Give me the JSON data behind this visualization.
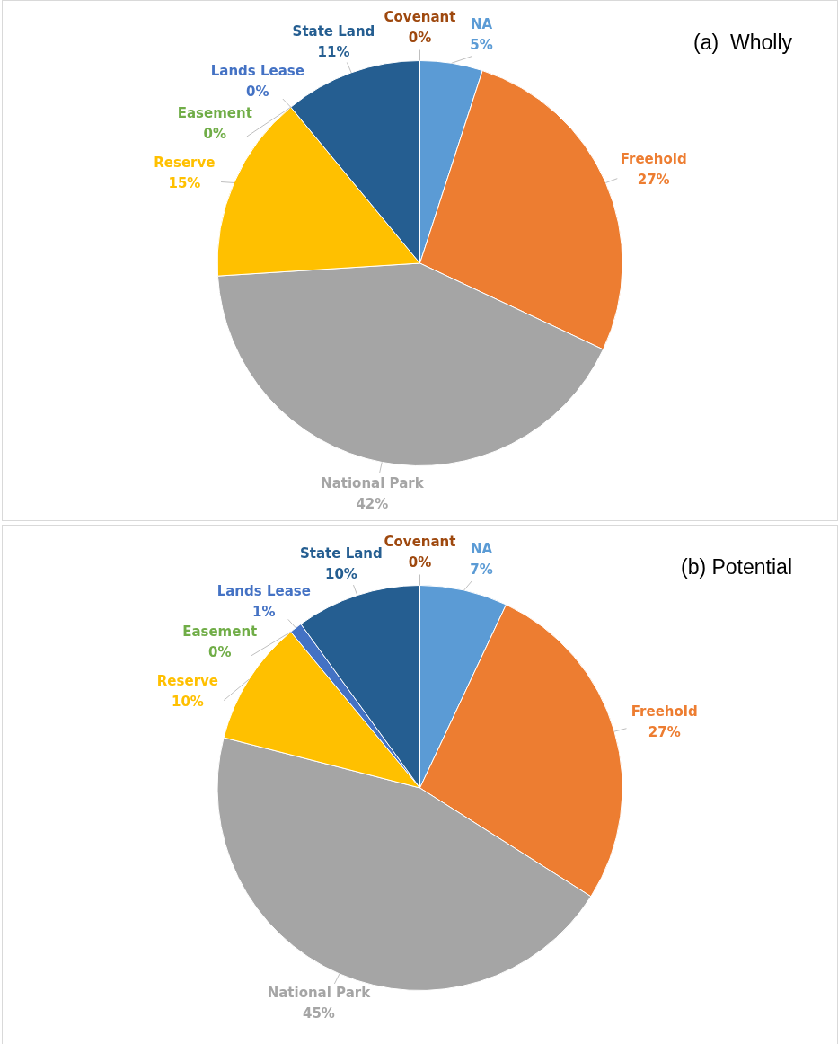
{
  "chart_data": [
    {
      "type": "pie",
      "title": "(a)  Wholly",
      "categories": [
        "NA",
        "Freehold",
        "National Park",
        "Reserve",
        "Easement",
        "Lands Lease",
        "State Land",
        "Covenant"
      ],
      "values": [
        5,
        27,
        42,
        15,
        0,
        0,
        11,
        0
      ],
      "value_labels": [
        "5%",
        "27%",
        "42%",
        "15%",
        "0%",
        "0%",
        "11%",
        "0%"
      ],
      "colors": [
        "#5b9bd5",
        "#ed7d31",
        "#a5a5a5",
        "#ffc000",
        "#70ad47",
        "#4472c4",
        "#255e91",
        "#9e480e"
      ]
    },
    {
      "type": "pie",
      "title": "(b) Potential",
      "categories": [
        "NA",
        "Freehold",
        "National Park",
        "Reserve",
        "Easement",
        "Lands Lease",
        "State Land",
        "Covenant"
      ],
      "values": [
        7,
        27,
        45,
        10,
        0,
        1,
        10,
        0
      ],
      "value_labels": [
        "7%",
        "27%",
        "45%",
        "10%",
        "0%",
        "1%",
        "10%",
        "0%"
      ],
      "colors": [
        "#5b9bd5",
        "#ed7d31",
        "#a5a5a5",
        "#ffc000",
        "#70ad47",
        "#4472c4",
        "#255e91",
        "#9e480e"
      ]
    }
  ]
}
